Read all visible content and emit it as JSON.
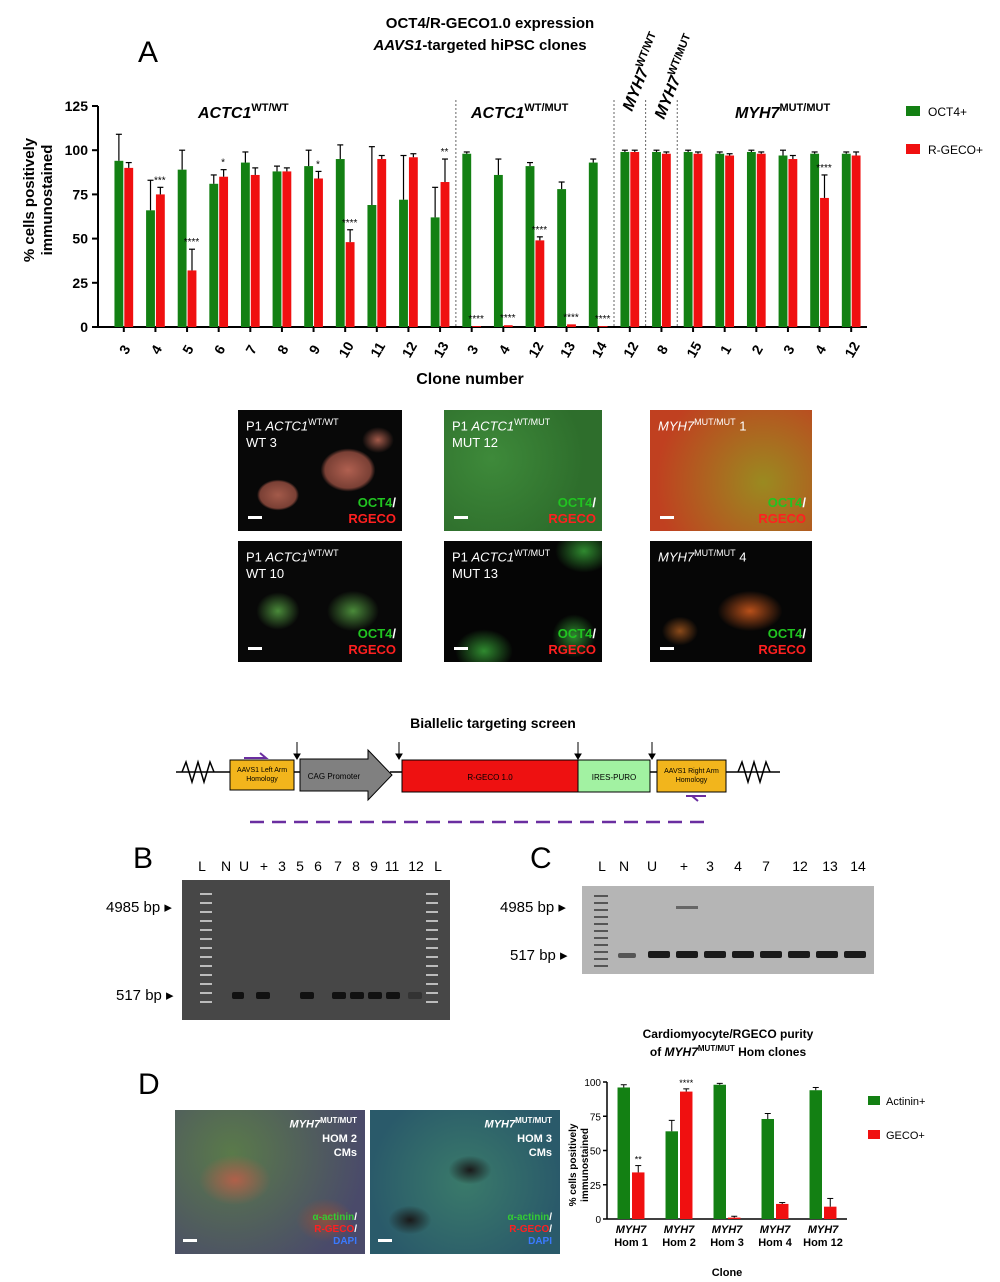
{
  "panelA": {
    "letter": "A",
    "title_line1": "OCT4/R-GECO1.0 expression",
    "title_line2_italic": "AAVS1",
    "title_line2_rest": "-targeted hiPSC clones",
    "xlabel": "Clone number",
    "ylabel_line1": "% cells positively",
    "ylabel_line2": "immunostained",
    "groups": [
      {
        "name": "ACTC1",
        "sup": "WT/WT"
      },
      {
        "name": "ACTC1",
        "sup": "WT/MUT"
      },
      {
        "name": "MYH7",
        "sup": "WT/WT"
      },
      {
        "name": "MYH7",
        "sup": "WT/MUT"
      },
      {
        "name": "MYH7",
        "sup": "MUT/MUT"
      }
    ],
    "legend": [
      "OCT4+",
      "R-GECO+"
    ],
    "colors": {
      "oct4": "#138013",
      "rgeco": "#f01010"
    }
  },
  "chart_data": [
    {
      "type": "bar",
      "title": "OCT4/R-GECO1.0 expression in AAVS1-targeted hiPSC clones",
      "xlabel": "Clone number",
      "ylabel": "% cells positively immunostained",
      "ylim": [
        0,
        125
      ],
      "yticks": [
        0,
        25,
        50,
        75,
        100,
        125
      ],
      "categories": [
        "3",
        "4",
        "5",
        "6",
        "7",
        "8",
        "9",
        "10",
        "11",
        "12",
        "13",
        "3",
        "4",
        "12",
        "13",
        "14",
        "12",
        "8",
        "15",
        "1",
        "2",
        "3",
        "4",
        "12"
      ],
      "series": [
        {
          "name": "OCT4+",
          "values": [
            94,
            66,
            89,
            81,
            93,
            88,
            91,
            95,
            69,
            72,
            62,
            98,
            86,
            91,
            78,
            93,
            99,
            99,
            99,
            98,
            99,
            97,
            98,
            98
          ],
          "errors": [
            15,
            17,
            11,
            5,
            6,
            3,
            9,
            8,
            33,
            25,
            17,
            1,
            9,
            2,
            4,
            2,
            1,
            1,
            1,
            1,
            1,
            3,
            1,
            1
          ]
        },
        {
          "name": "R-GECO+",
          "values": [
            90,
            75,
            32,
            85,
            86,
            88,
            84,
            48,
            95,
            96,
            82,
            0.5,
            1,
            49,
            1.5,
            0.5,
            99,
            98,
            98,
            97,
            98,
            95,
            73,
            97
          ],
          "errors": [
            3,
            4,
            12,
            4,
            4,
            2,
            4,
            7,
            2,
            2,
            13,
            0,
            0,
            2,
            0,
            0,
            1,
            1,
            1,
            1,
            1,
            2,
            13,
            2
          ]
        }
      ],
      "annotations": [
        {
          "category_index": 1,
          "text": "***"
        },
        {
          "category_index": 2,
          "text": "****"
        },
        {
          "category_index": 3,
          "text": "*"
        },
        {
          "category_index": 6,
          "text": "*"
        },
        {
          "category_index": 7,
          "text": "****"
        },
        {
          "category_index": 10,
          "text": "**"
        },
        {
          "category_index": 11,
          "text": "****"
        },
        {
          "category_index": 12,
          "text": "****"
        },
        {
          "category_index": 13,
          "text": "****"
        },
        {
          "category_index": 14,
          "text": "****"
        },
        {
          "category_index": 15,
          "text": "****"
        },
        {
          "category_index": 22,
          "text": "****"
        }
      ],
      "legend_position": "right",
      "grid": false
    },
    {
      "type": "bar",
      "title": "Cardiomyocyte/RGECO purity of MYH7MUT/MUT Hom clones",
      "xlabel": "Clone",
      "ylabel": "% cells positively immunostained",
      "ylim": [
        0,
        100
      ],
      "yticks": [
        0,
        25,
        50,
        75,
        100
      ],
      "categories": [
        "MYH7 Hom 1",
        "MYH7 Hom 2",
        "MYH7 Hom 3",
        "MYH7 Hom 4",
        "MYH7 Hom 12"
      ],
      "series": [
        {
          "name": "Actinin+",
          "values": [
            96,
            64,
            98,
            73,
            94
          ],
          "errors": [
            2,
            8,
            1,
            4,
            2
          ]
        },
        {
          "name": "GECO+",
          "values": [
            34,
            93,
            1,
            11,
            9
          ],
          "errors": [
            5,
            2,
            1,
            1,
            6
          ]
        }
      ],
      "annotations": [
        {
          "category_index": 0,
          "text": "**"
        },
        {
          "category_index": 1,
          "text": "****"
        }
      ],
      "legend_position": "right",
      "grid": false
    }
  ],
  "micrographs": [
    {
      "prefix": "P1 ",
      "gene": "ACTC1",
      "sup": "WT/WT",
      "line2": "WT 3",
      "stain1": "OCT4",
      "stain2": "RGECO"
    },
    {
      "prefix": "P1 ",
      "gene": "ACTC1",
      "sup": "WT/MUT",
      "line2": "MUT 12",
      "stain1": "OCT4",
      "stain2": "RGECO"
    },
    {
      "prefix": "",
      "gene": "MYH7",
      "sup": "MUT/MUT",
      "line2": " 1",
      "stain1": "OCT4",
      "stain2": "RGECO"
    },
    {
      "prefix": "P1 ",
      "gene": "ACTC1",
      "sup": "WT/WT",
      "line2": "WT 10",
      "stain1": "OCT4",
      "stain2": "RGECO"
    },
    {
      "prefix": "P1 ",
      "gene": "ACTC1",
      "sup": "WT/MUT",
      "line2": "MUT 13",
      "stain1": "OCT4",
      "stain2": "RGECO"
    },
    {
      "prefix": "",
      "gene": "MYH7",
      "sup": "MUT/MUT",
      "line2": " 4",
      "stain1": "OCT4",
      "stain2": "RGECO"
    }
  ],
  "construct": {
    "title": "Biallelic targeting screen",
    "left_arm": "AAVS1 Left Arm Homology",
    "promoter": "CAG Promoter",
    "reporter": "R-GECO 1.0",
    "ires": "IRES-PURO",
    "right_arm": "AAVS1 Right Arm Homology"
  },
  "gelB": {
    "letter": "B",
    "lanes": [
      "L",
      "N",
      "U",
      "+",
      "3",
      "5",
      "6",
      "7",
      "8",
      "9",
      "11",
      "12",
      "L"
    ],
    "bp_high": "4985 bp",
    "bp_low": "517 bp"
  },
  "gelC": {
    "letter": "C",
    "lanes": [
      "L",
      "N",
      "U",
      "+",
      "3",
      "4",
      "7",
      "12",
      "13",
      "14"
    ],
    "bp_high": "4985 bp",
    "bp_low": "517 bp"
  },
  "panelD": {
    "letter": "D",
    "img1": {
      "gene": "MYH7",
      "sup": "MUT/MUT",
      "line2": "HOM 2",
      "line3": "CMs",
      "stain1": "α-actinin",
      "stain2": "R-GECO",
      "stain3": "DAPI"
    },
    "img2": {
      "gene": "MYH7",
      "sup": "MUT/MUT",
      "line2": "HOM 3",
      "line3": "CMs",
      "stain1": "α-actinin",
      "stain2": "R-GECO",
      "stain3": "DAPI"
    },
    "chart_title_line1": "Cardiomyocyte/RGECO purity",
    "chart_title_line2_pre": "of ",
    "chart_title_gene": "MYH7",
    "chart_title_sup": "MUT/MUT",
    "chart_title_post": " Hom clones",
    "legend": [
      "Actinin+",
      "GECO+"
    ],
    "xlabel": "Clone",
    "ylabel_line1": "% cells positively",
    "ylabel_line2": "immunostained",
    "cat_gene": "MYH7",
    "cat_labels": [
      "Hom 1",
      "Hom 2",
      "Hom 3",
      "Hom 4",
      "Hom 12"
    ]
  }
}
